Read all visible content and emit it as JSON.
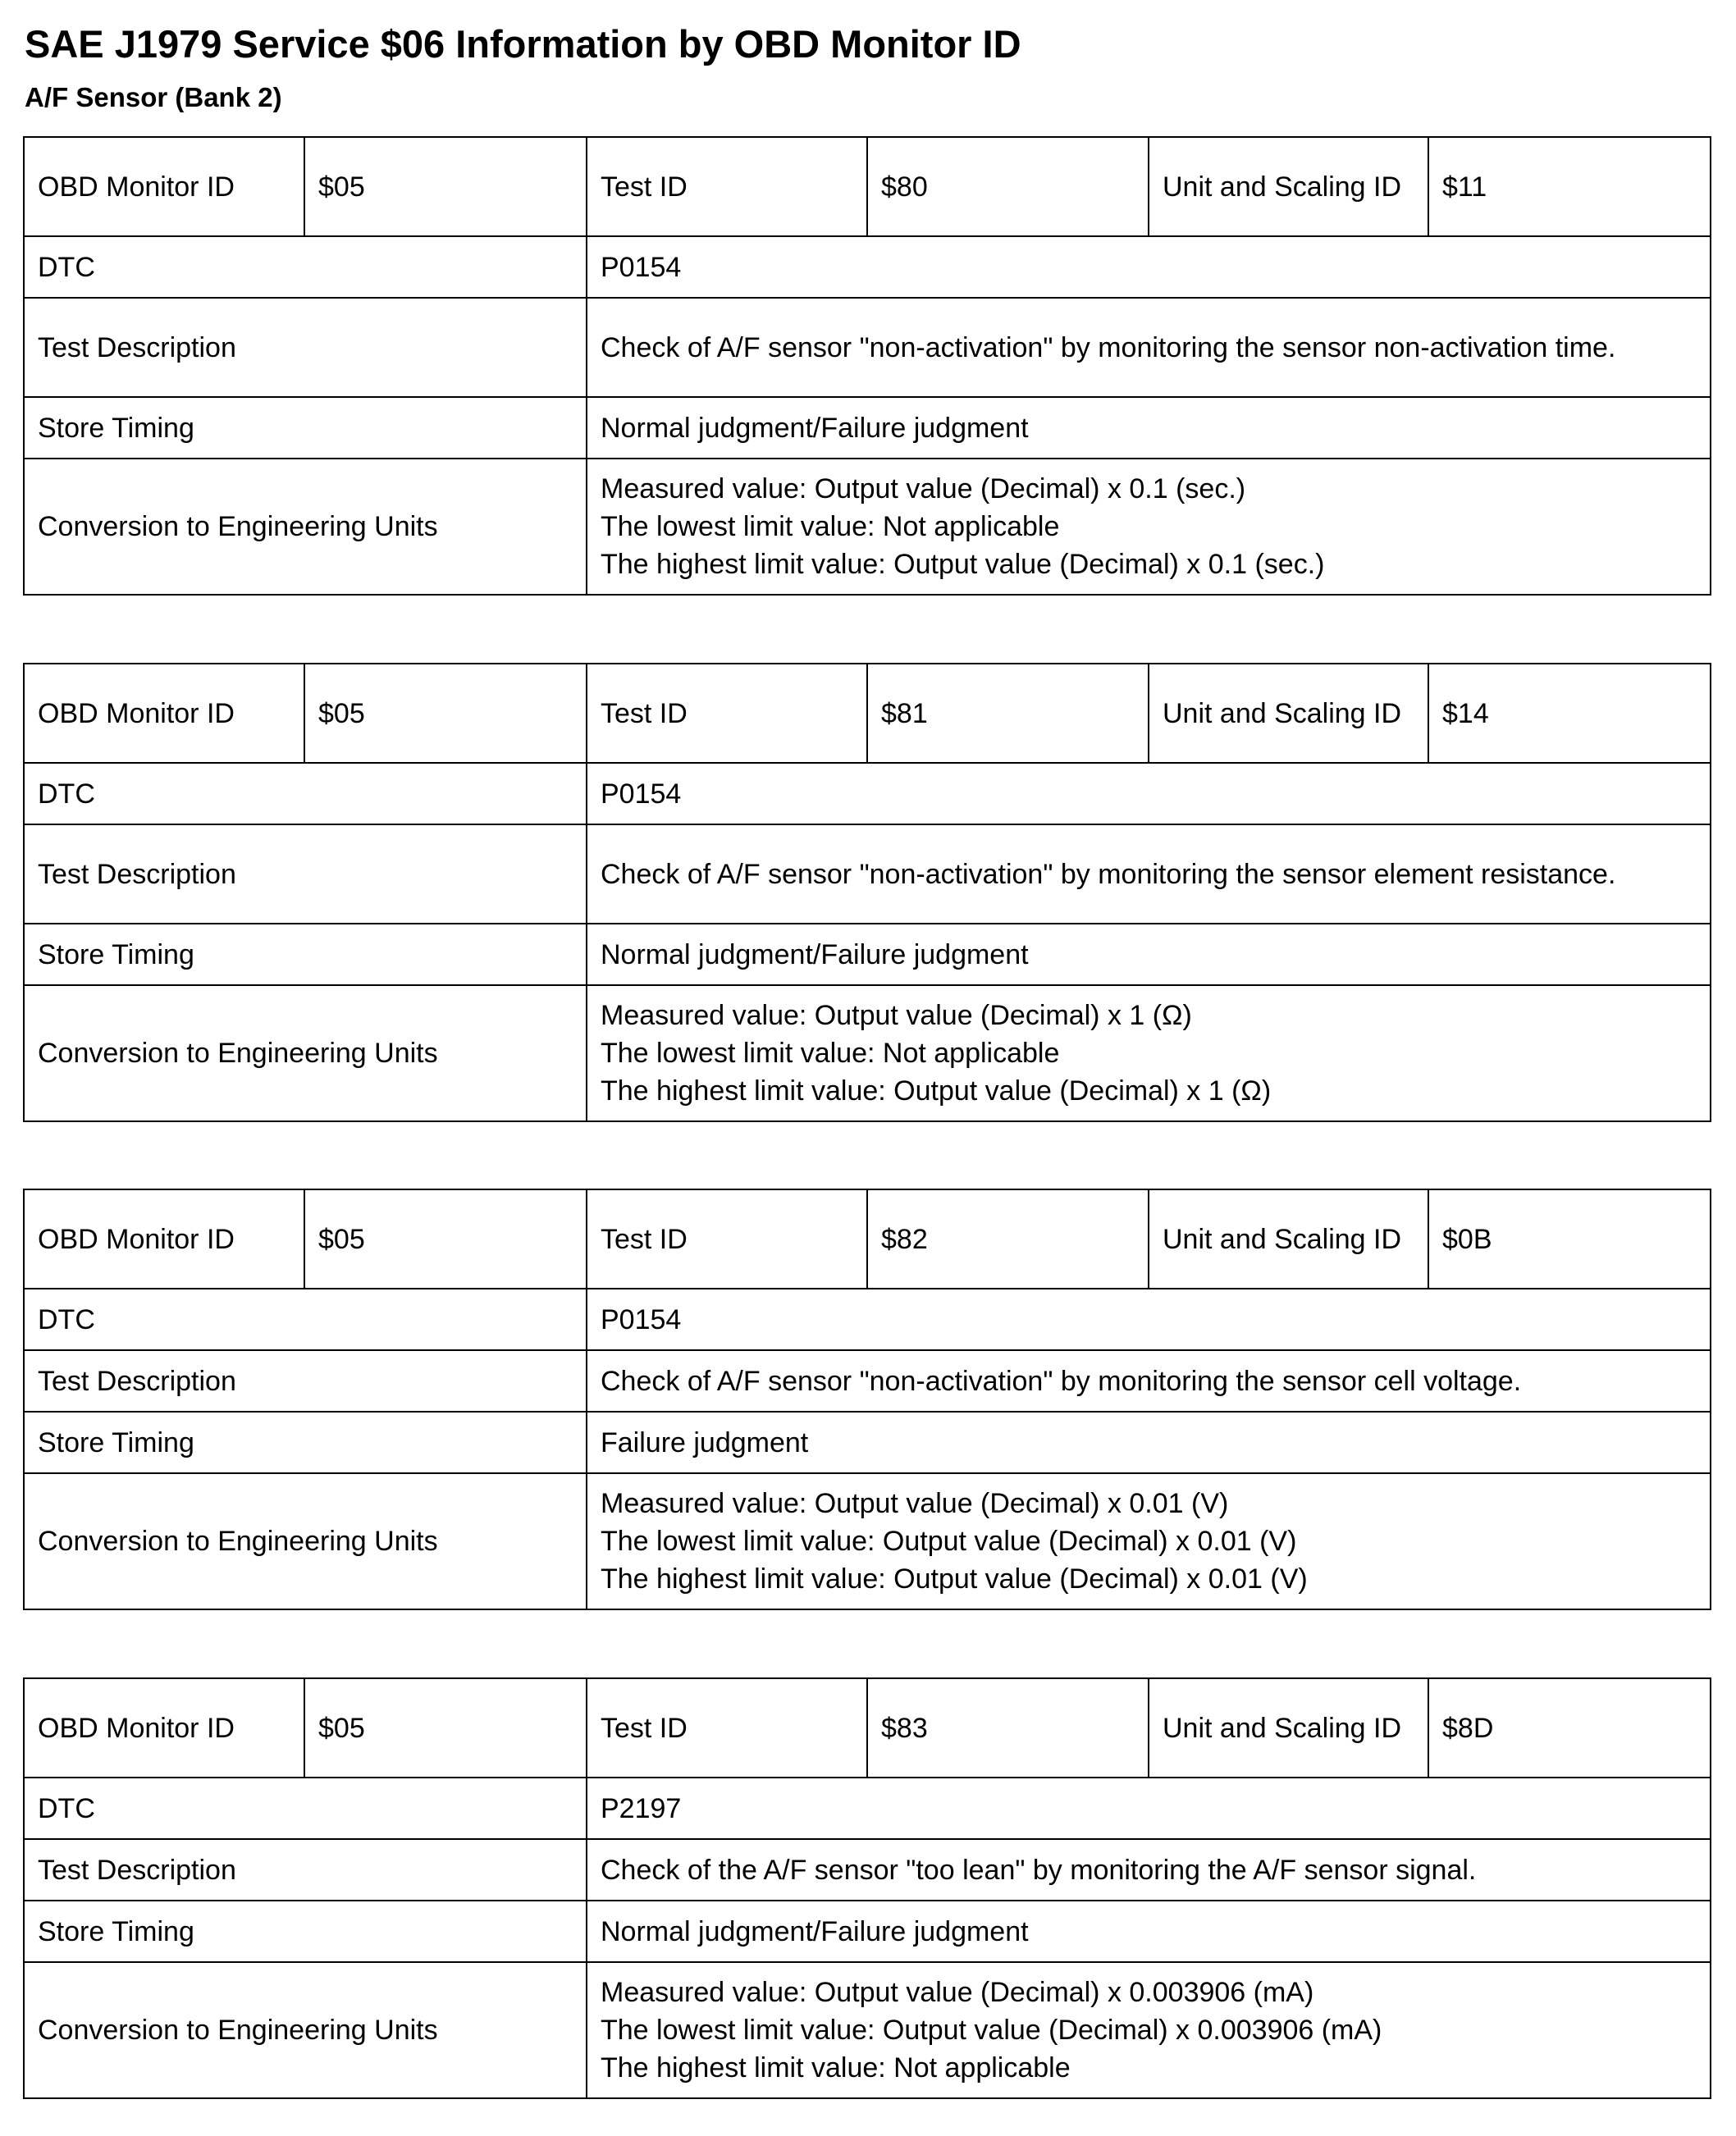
{
  "title": "SAE J1979 Service $06 Information by OBD Monitor ID",
  "subtitle": "A/F Sensor (Bank 2)",
  "labels": {
    "obd_monitor_id": "OBD Monitor ID",
    "test_id": "Test ID",
    "unit_scaling_id": "Unit and Scaling ID",
    "dtc": "DTC",
    "test_description": "Test Description",
    "store_timing": "Store Timing",
    "conversion": "Conversion to Engineering Units"
  },
  "tables": [
    {
      "obd_monitor_id": "$05",
      "test_id": "$80",
      "unit_scaling_id": "$11",
      "dtc": "P0154",
      "test_description": "Check of A/F sensor \"non-activation\" by monitoring the sensor non-activation time.",
      "store_timing": "Normal judgment/Failure judgment",
      "conversion": [
        "Measured value: Output value (Decimal) x 0.1 (sec.)",
        "The lowest limit value: Not applicable",
        "The highest limit value: Output value (Decimal) x 0.1 (sec.)"
      ]
    },
    {
      "obd_monitor_id": "$05",
      "test_id": "$81",
      "unit_scaling_id": "$14",
      "dtc": "P0154",
      "test_description": "Check of A/F sensor \"non-activation\" by monitoring the sensor element resistance.",
      "store_timing": "Normal judgment/Failure judgment",
      "conversion": [
        "Measured value: Output value (Decimal) x 1 (Ω)",
        "The lowest limit value: Not applicable",
        "The highest limit value: Output value (Decimal) x 1 (Ω)"
      ]
    },
    {
      "obd_monitor_id": "$05",
      "test_id": "$82",
      "unit_scaling_id": "$0B",
      "dtc": "P0154",
      "test_description": "Check of A/F sensor \"non-activation\" by monitoring the sensor cell voltage.",
      "store_timing": "Failure judgment",
      "conversion": [
        "Measured value: Output value (Decimal) x 0.01 (V)",
        "The lowest limit value: Output value (Decimal) x 0.01 (V)",
        "The highest limit value: Output value (Decimal) x 0.01 (V)"
      ]
    },
    {
      "obd_monitor_id": "$05",
      "test_id": "$83",
      "unit_scaling_id": "$8D",
      "dtc": "P2197",
      "test_description": "Check of the A/F sensor \"too lean\" by monitoring the A/F sensor signal.",
      "store_timing": "Normal judgment/Failure judgment",
      "conversion": [
        "Measured value: Output value (Decimal) x 0.003906 (mA)",
        "The lowest limit value: Output value (Decimal) x 0.003906 (mA)",
        "The highest limit value: Not applicable"
      ]
    }
  ]
}
